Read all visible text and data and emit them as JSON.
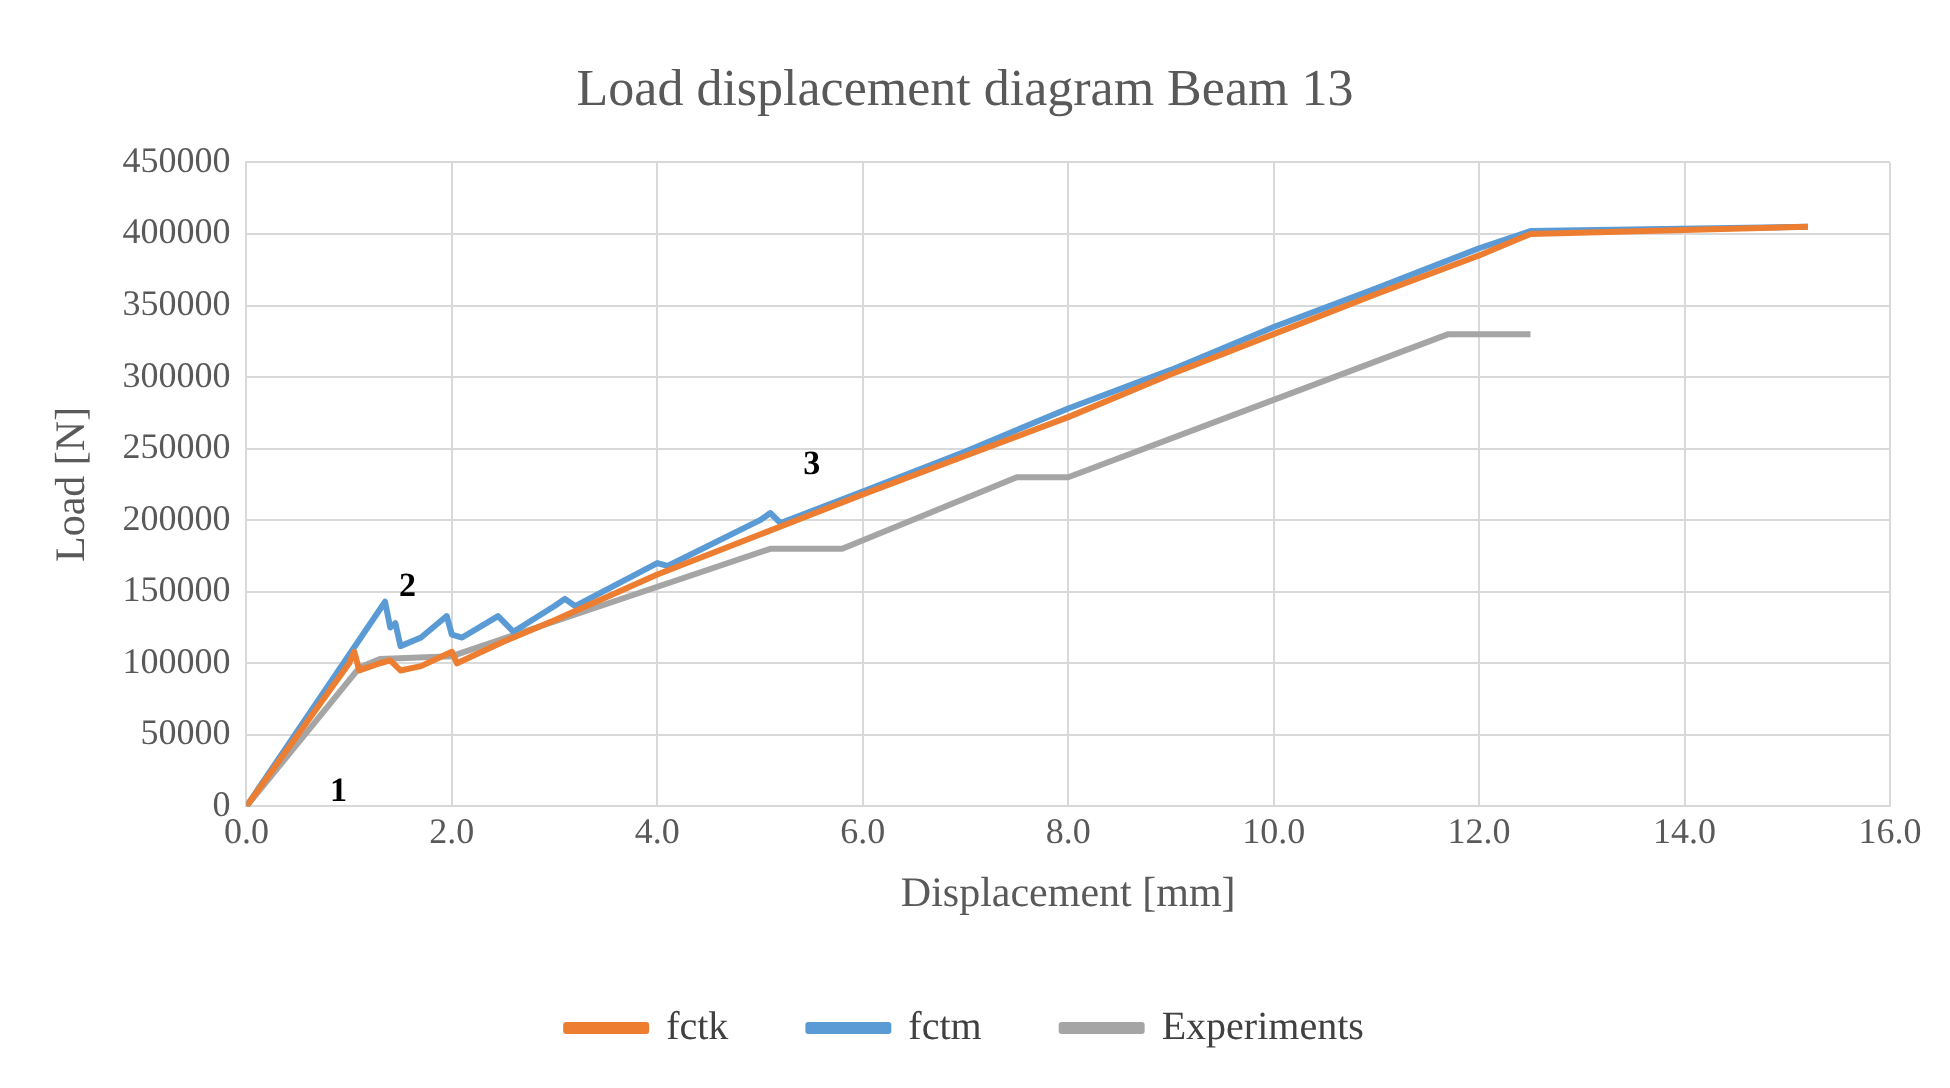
{
  "chart_data": {
    "type": "line",
    "title": "Load displacement diagram Beam 13",
    "xlabel": "Displacement [mm]",
    "ylabel": "Load [N]",
    "xlim": [
      0,
      16
    ],
    "xticks": [
      {
        "value": 0,
        "label": "0.0"
      },
      {
        "value": 2,
        "label": "2.0"
      },
      {
        "value": 4,
        "label": "4.0"
      },
      {
        "value": 6,
        "label": "6.0"
      },
      {
        "value": 8,
        "label": "8.0"
      },
      {
        "value": 10,
        "label": "10.0"
      },
      {
        "value": 12,
        "label": "12.0"
      },
      {
        "value": 14,
        "label": "14.0"
      },
      {
        "value": 16,
        "label": "16.0"
      }
    ],
    "ylim": [
      0,
      450000
    ],
    "yticks": [
      0,
      50000,
      100000,
      150000,
      200000,
      250000,
      300000,
      350000,
      400000,
      450000
    ],
    "grid": true,
    "legend": "bottom",
    "marker": "none",
    "line_style": "solid",
    "annotations": [
      "1",
      "2",
      "3"
    ],
    "series": [
      {
        "name": "fctk",
        "color": "#ed7d31",
        "x": [
          0,
          1.0,
          1.05,
          1.1,
          1.3,
          1.4,
          1.5,
          1.7,
          2.0,
          2.05,
          2.5,
          3,
          4,
          5,
          6,
          7,
          8,
          9,
          10,
          11,
          12,
          12.5,
          15.2
        ],
        "values": [
          0,
          100000,
          108000,
          95000,
          100000,
          102000,
          95000,
          98000,
          108000,
          100000,
          115000,
          130000,
          162000,
          190000,
          218000,
          245000,
          272000,
          302000,
          330000,
          358000,
          385000,
          400000,
          405000
        ]
      },
      {
        "name": "fctm",
        "color": "#5b9bd5",
        "x": [
          0,
          1.35,
          1.4,
          1.45,
          1.5,
          1.7,
          1.95,
          2.0,
          2.1,
          2.45,
          2.6,
          3.0,
          3.1,
          3.2,
          4.0,
          4.1,
          5.0,
          5.1,
          5.2,
          6.0,
          7.0,
          8.0,
          9.0,
          10.0,
          11.0,
          12.0,
          12.5,
          15.2
        ],
        "values": [
          0,
          143000,
          125000,
          128000,
          112000,
          118000,
          133000,
          120000,
          118000,
          133000,
          122000,
          140000,
          145000,
          140000,
          170000,
          168000,
          200000,
          205000,
          198000,
          220000,
          248000,
          278000,
          305000,
          335000,
          362000,
          390000,
          402000,
          405000
        ]
      },
      {
        "name": "Experiments",
        "color": "#a5a5a5",
        "x": [
          0,
          1.1,
          1.3,
          2.0,
          5.1,
          5.8,
          7.5,
          8.0,
          11.7,
          12.5
        ],
        "values": [
          0,
          97000,
          103000,
          105000,
          180000,
          180000,
          230000,
          230000,
          330000,
          330000
        ]
      }
    ]
  }
}
